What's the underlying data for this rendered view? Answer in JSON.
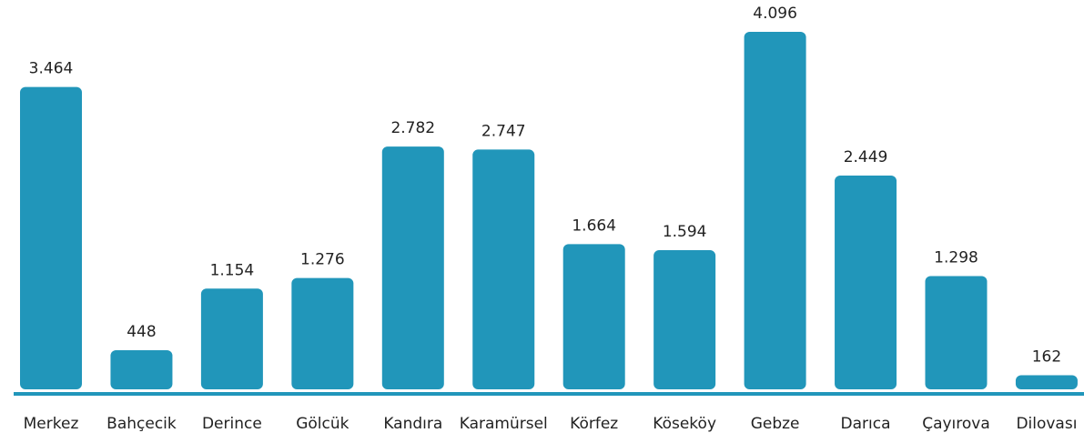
{
  "chart_data": {
    "type": "bar",
    "categories": [
      "Merkez",
      "Bahçecik",
      "Derince",
      "Gölcük",
      "Kandıra",
      "Karamürsel",
      "Körfez",
      "Köseköy",
      "Gebze",
      "Darıca",
      "Çayırova",
      "Dilovası"
    ],
    "values": [
      3464,
      448,
      1154,
      1276,
      2782,
      2747,
      1664,
      1594,
      4096,
      2449,
      1298,
      162
    ],
    "value_labels": [
      "3.464",
      "448",
      "1.154",
      "1.276",
      "2.782",
      "2.747",
      "1.664",
      "1.594",
      "4.096",
      "2.449",
      "1.298",
      "162"
    ],
    "color": "#2196ba"
  }
}
